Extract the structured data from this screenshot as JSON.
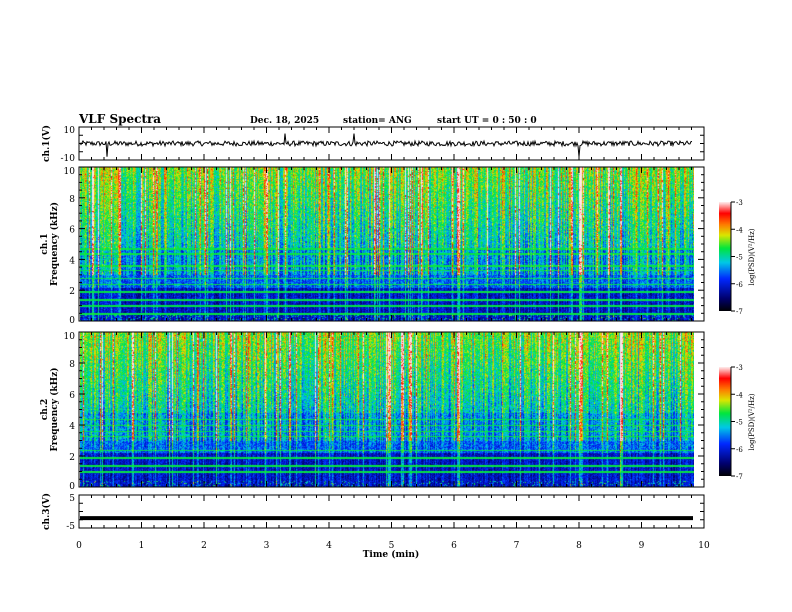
{
  "header": {
    "title": "VLF Spectra",
    "date": "Dec. 18, 2025",
    "station": "station= ANG",
    "start": "start  UT =   0 : 50 : 0"
  },
  "chart_data": [
    {
      "type": "line",
      "name": "ch1",
      "ylabel": "ch.1(V)",
      "ylim": [
        -10,
        10
      ],
      "yticks": [
        "10",
        "-10"
      ],
      "description_values": {
        "baseline": 0,
        "noise_amplitude": 1.5,
        "spike_times_min": [
          0.45,
          3.3,
          4.4,
          8.0
        ]
      }
    },
    {
      "type": "heatmap",
      "name": "ch1-spectrogram",
      "ylabel": "ch.1\nFrequency (kHz)",
      "ylim": [
        0,
        10
      ],
      "yticks": [
        "0",
        "2",
        "4",
        "6",
        "8",
        "10"
      ],
      "xlim": [
        0,
        9.83
      ],
      "colorbar": {
        "label": "log(PSD)(V²/Hz)",
        "range": [
          -7,
          -3
        ],
        "ticks": [
          "-3",
          "-4",
          "-5",
          "-6",
          "-7"
        ]
      },
      "narrowband_lines_khz": [
        0.5,
        1.0,
        1.4,
        1.9,
        2.4,
        2.8,
        3.3,
        3.6,
        4.4,
        4.7
      ],
      "strong_events_min": [
        6.05,
        8.0,
        8.65
      ]
    },
    {
      "type": "heatmap",
      "name": "ch2-spectrogram",
      "ylabel": "ch.2\nFrequency (kHz)",
      "ylim": [
        0,
        10
      ],
      "yticks": [
        "0",
        "2",
        "4",
        "6",
        "8",
        "10"
      ],
      "xlim": [
        0,
        9.83
      ],
      "colorbar": {
        "label": "log(PSD)(V²/Hz)",
        "range": [
          -7,
          -3
        ],
        "ticks": [
          "-3",
          "-4",
          "-5",
          "-6",
          "-7"
        ]
      },
      "narrowband_lines_khz": [
        1.0,
        1.4,
        1.9,
        2.4,
        3.3,
        3.6,
        4.0,
        4.4
      ],
      "strong_events_min": [
        6.05,
        8.0,
        8.65
      ]
    },
    {
      "type": "line",
      "name": "ch3",
      "ylabel": "ch.3(V)",
      "ylim": [
        -5,
        5
      ],
      "yticks": [
        "5",
        "-5"
      ],
      "description_values": {
        "baseline": -2
      }
    }
  ],
  "xaxis": {
    "label": "Time  (min)",
    "xlim": [
      0,
      10
    ],
    "ticks": [
      "0",
      "1",
      "2",
      "3",
      "4",
      "5",
      "6",
      "7",
      "8",
      "9",
      "10"
    ]
  },
  "colors": {
    "line": "#000000"
  }
}
